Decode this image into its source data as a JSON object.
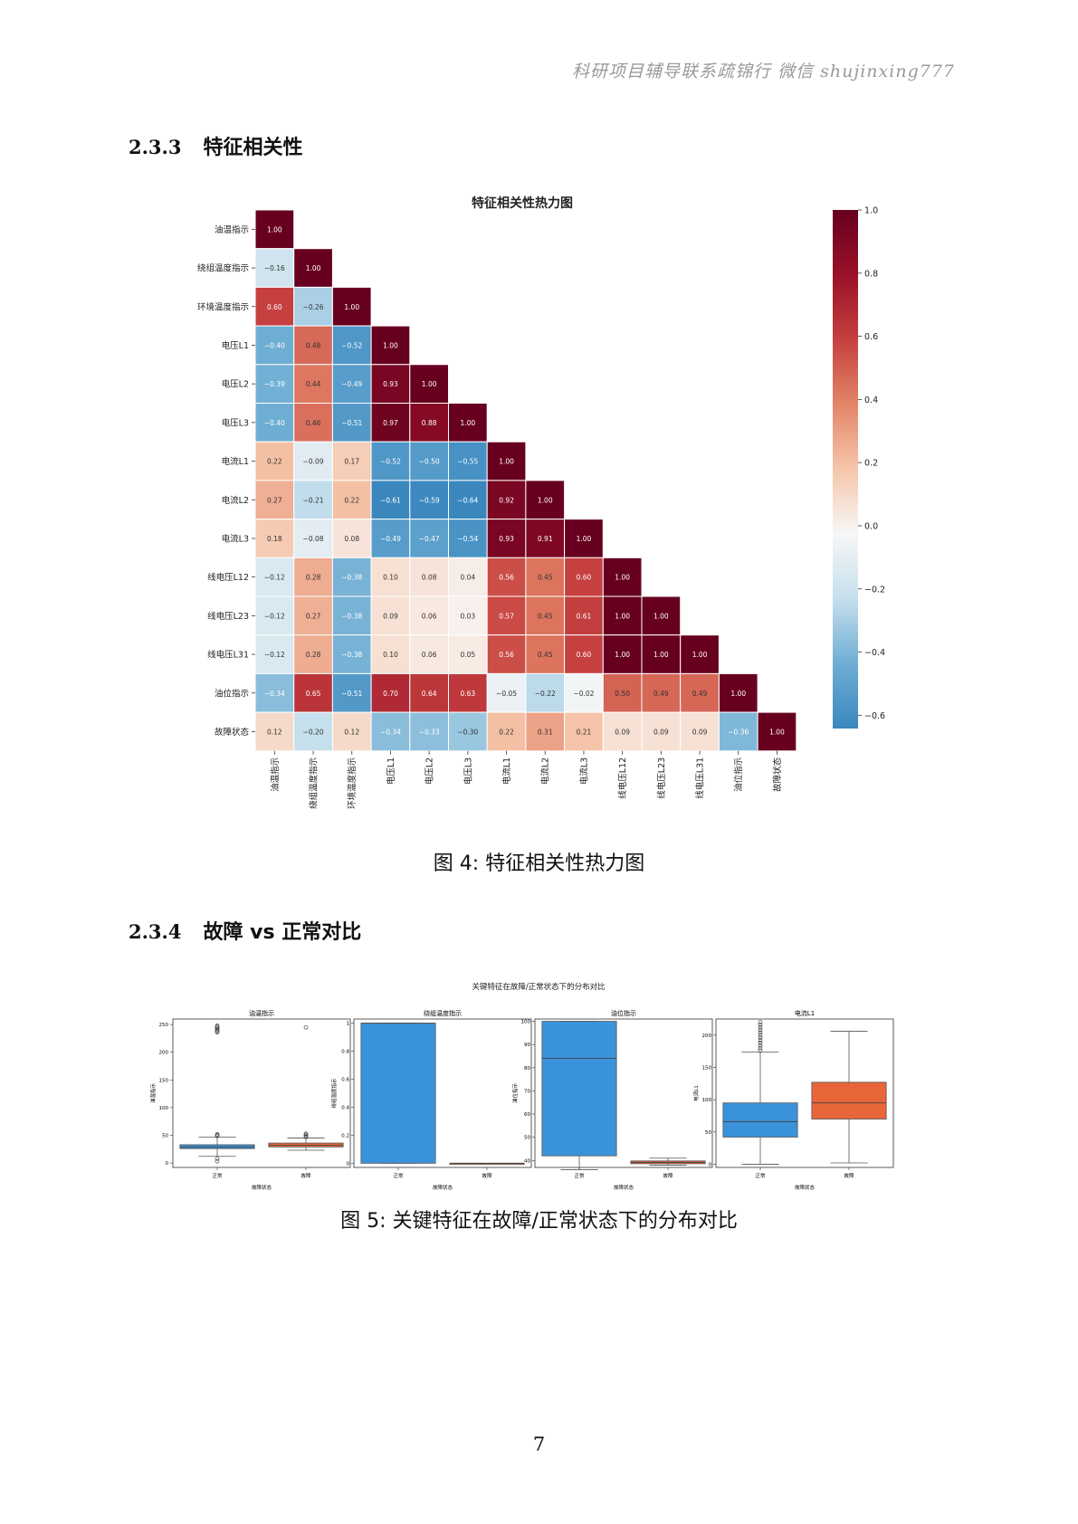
{
  "header_note": "科研项目辅导联系疏锦行 微信 shujinxing777",
  "sections": [
    {
      "number": "2.3.3",
      "title": "特征相关性"
    },
    {
      "number": "2.3.4",
      "title": "故障 vs 正常对比"
    }
  ],
  "captions": {
    "figure4": "图 4: 特征相关性热力图",
    "figure5": "图 5: 关键特征在故障/正常状态下的分布对比"
  },
  "page_number": "7",
  "colors": {
    "heat_negative": "#2166ac",
    "heat_neutral": "#f7f7f7",
    "heat_positive": "#67001f",
    "box_normal": "#3a93da",
    "box_fault": "#e8653a"
  },
  "chart_data": [
    {
      "type": "heatmap",
      "title": "特征相关性热力图",
      "colorscale": "RdBu_r",
      "triangle": "lower",
      "vmin": -0.6,
      "vmax": 1.0,
      "colorbar_ticks": [
        "1.0",
        "0.8",
        "0.6",
        "0.4",
        "0.2",
        "0.0",
        "−0.2",
        "−0.4",
        "−0.6"
      ],
      "colorbar_tick_values": [
        1.0,
        0.8,
        0.6,
        0.4,
        0.2,
        0.0,
        -0.2,
        -0.4,
        -0.6
      ],
      "labels": [
        "油温指示",
        "绕组温度指示",
        "环境温度指示",
        "电压L1",
        "电压L2",
        "电压L3",
        "电流L1",
        "电流L2",
        "电流L3",
        "线电压L12",
        "线电压L23",
        "线电压L31",
        "油位指示",
        "故障状态"
      ],
      "values": [
        [
          1.0
        ],
        [
          -0.16,
          1.0
        ],
        [
          0.6,
          -0.26,
          1.0
        ],
        [
          -0.4,
          0.48,
          -0.52,
          1.0
        ],
        [
          -0.39,
          0.44,
          -0.49,
          0.93,
          1.0
        ],
        [
          -0.4,
          0.46,
          -0.51,
          0.97,
          0.88,
          1.0
        ],
        [
          0.22,
          -0.09,
          0.17,
          -0.52,
          -0.5,
          -0.55,
          1.0
        ],
        [
          0.27,
          -0.21,
          0.22,
          -0.61,
          -0.59,
          -0.64,
          0.92,
          1.0
        ],
        [
          0.18,
          -0.08,
          0.08,
          -0.49,
          -0.47,
          -0.54,
          0.93,
          0.91,
          1.0
        ],
        [
          -0.12,
          0.28,
          -0.38,
          0.1,
          0.08,
          0.04,
          0.56,
          0.45,
          0.6,
          1.0
        ],
        [
          -0.12,
          0.27,
          -0.38,
          0.09,
          0.06,
          0.03,
          0.57,
          0.45,
          0.61,
          1.0,
          1.0
        ],
        [
          -0.12,
          0.28,
          -0.38,
          0.1,
          0.06,
          0.05,
          0.56,
          0.45,
          0.6,
          1.0,
          1.0,
          1.0
        ],
        [
          -0.34,
          0.65,
          -0.51,
          0.7,
          0.64,
          0.63,
          -0.05,
          -0.22,
          -0.02,
          0.5,
          0.49,
          0.49,
          1.0
        ],
        [
          0.12,
          -0.2,
          0.12,
          -0.34,
          -0.33,
          -0.3,
          0.22,
          0.31,
          0.21,
          0.09,
          0.09,
          0.09,
          -0.36,
          1.0
        ]
      ]
    },
    {
      "type": "box",
      "title": "关键特征在故障/正常状态下的分布对比",
      "xlabel": "故障状态",
      "categories": [
        "正常",
        "故障"
      ],
      "panels": [
        {
          "title": "油温指示",
          "ylabel": "油温指示",
          "ylim": [
            -8,
            260
          ],
          "yticks": [
            0,
            50,
            100,
            150,
            200,
            250
          ],
          "boxes": [
            {
              "q1": 26,
              "median": 29,
              "q3": 33,
              "whisker_low": 12,
              "whisker_high": 47,
              "outliers": [
                3,
                8,
                49,
                50,
                52,
                236,
                238,
                240,
                242,
                244,
                246,
                248
              ]
            },
            {
              "q1": 29,
              "median": 32,
              "q3": 36,
              "whisker_low": 23,
              "whisker_high": 45,
              "outliers": [
                47,
                49,
                51,
                53,
                245
              ]
            }
          ]
        },
        {
          "title": "绕组温度指示",
          "ylabel": "绕组温度指示",
          "ylim": [
            -0.03,
            1.03
          ],
          "yticks": [
            0.0,
            0.2,
            0.4,
            0.6,
            0.8,
            1.0
          ],
          "boxes": [
            {
              "q1": 0.0,
              "median": 1.0,
              "q3": 1.0,
              "whisker_low": 0.0,
              "whisker_high": 1.0,
              "outliers": []
            },
            {
              "q1": 0.0,
              "median": 0.0,
              "q3": 0.0,
              "whisker_low": 0.0,
              "whisker_high": 0.0,
              "outliers": []
            }
          ]
        },
        {
          "title": "油位指示",
          "ylabel": "油位指示",
          "ylim": [
            37,
            101
          ],
          "yticks": [
            40,
            50,
            60,
            70,
            80,
            90,
            100
          ],
          "boxes": [
            {
              "q1": 42,
              "median": 84,
              "q3": 100,
              "whisker_low": 36,
              "whisker_high": 100,
              "outliers": []
            },
            {
              "q1": 38.6,
              "median": 39.2,
              "q3": 39.8,
              "whisker_low": 38.0,
              "whisker_high": 41.0,
              "outliers": []
            }
          ]
        },
        {
          "title": "电流L1",
          "ylabel": "电流L1",
          "ylim": [
            -5,
            225
          ],
          "yticks": [
            0,
            50,
            100,
            150,
            200
          ],
          "boxes": [
            {
              "q1": 42,
              "median": 66,
              "q3": 95,
              "whisker_low": 0,
              "whisker_high": 174,
              "outliers": [
                176,
                180,
                184,
                188,
                192,
                196,
                200,
                204,
                208,
                212,
                216,
                220
              ]
            },
            {
              "q1": 70,
              "median": 95,
              "q3": 127,
              "whisker_low": 2,
              "whisker_high": 206,
              "outliers": []
            }
          ]
        }
      ]
    }
  ]
}
